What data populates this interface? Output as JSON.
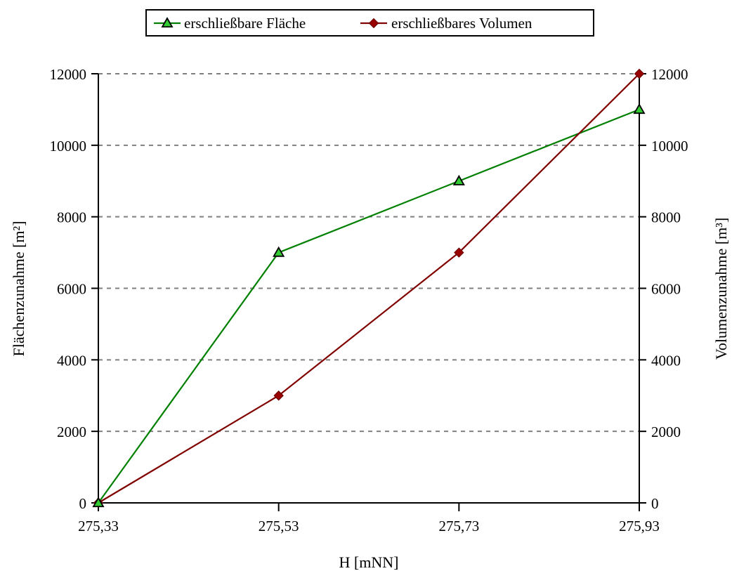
{
  "chart_data": {
    "type": "line",
    "xlabel": "H [mNN]",
    "ylabel_left": "Flächenzunahme [m²]",
    "ylabel_right": "Volumenzunahme [m³]",
    "x": [
      "275,33",
      "275,53",
      "275,73",
      "275,93"
    ],
    "ylim": [
      0,
      12000
    ],
    "yticks": [
      "0",
      "2000",
      "4000",
      "6000",
      "8000",
      "10000",
      "12000"
    ],
    "grid": "horizontal dashed",
    "legend_position": "top-center",
    "series": [
      {
        "name": "erschließbare Fläche",
        "axis": "left",
        "values": [
          0,
          7000,
          9000,
          11000
        ],
        "color": "#008000",
        "marker": "triangle",
        "marker_fill": "#33cc33"
      },
      {
        "name": "erschließbares Volumen",
        "axis": "right",
        "values": [
          0,
          3000,
          7000,
          12000
        ],
        "color": "#800000",
        "marker": "diamond",
        "marker_fill": "#990000"
      }
    ]
  }
}
